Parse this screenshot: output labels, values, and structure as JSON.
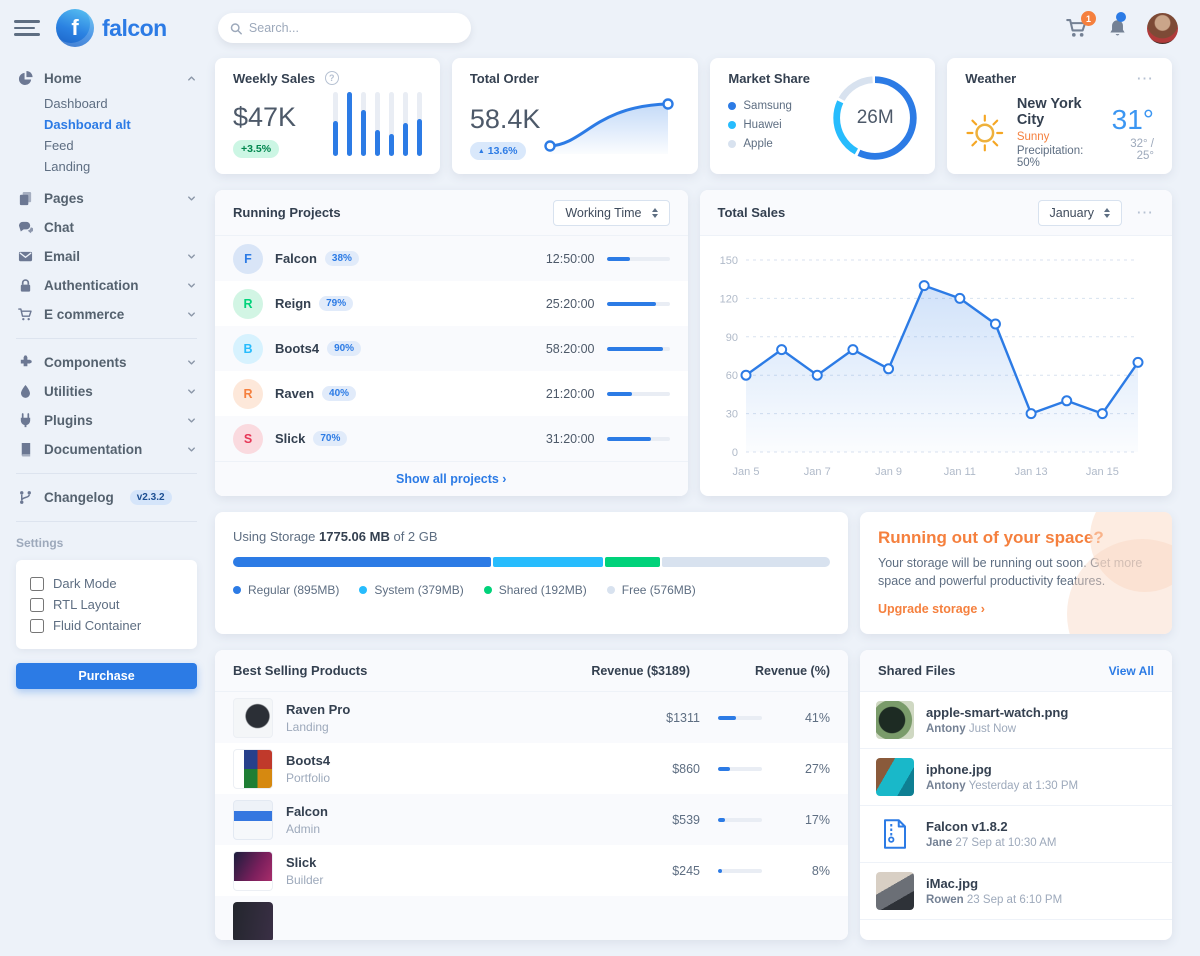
{
  "icons": {
    "ellipsis": "⋯",
    "caret_up": "▲",
    "question": "?"
  },
  "header": {
    "logo": "falcon",
    "logo_letter": "f",
    "search_placeholder": "Search...",
    "cart_badge": "1"
  },
  "sidebar": {
    "home": {
      "label": "Home",
      "children": [
        {
          "label": "Dashboard"
        },
        {
          "label": "Dashboard alt"
        },
        {
          "label": "Feed"
        },
        {
          "label": "Landing"
        }
      ]
    },
    "items_a": [
      {
        "label": "Pages"
      },
      {
        "label": "Chat"
      },
      {
        "label": "Email"
      },
      {
        "label": "Authentication"
      },
      {
        "label": "E commerce"
      }
    ],
    "items_b": [
      {
        "label": "Components"
      },
      {
        "label": "Utilities"
      },
      {
        "label": "Plugins"
      },
      {
        "label": "Documentation"
      }
    ],
    "changelog": {
      "label": "Changelog",
      "version": "v2.3.2"
    },
    "settings_title": "Settings",
    "toggles": [
      {
        "label": "Dark Mode"
      },
      {
        "label": "RTL Layout"
      },
      {
        "label": "Fluid Container"
      }
    ],
    "purchase_label": "Purchase"
  },
  "cards": {
    "weekly_sales": {
      "title": "Weekly Sales",
      "value": "$47K",
      "badge": "+3.5%",
      "chart": {
        "type": "bar",
        "values": [
          55,
          100,
          72,
          40,
          35,
          52,
          58
        ]
      }
    },
    "total_order": {
      "title": "Total Order",
      "value": "58.4K",
      "badge": "13.6%"
    },
    "market_share": {
      "title": "Market Share",
      "center": "26M",
      "segments": [
        {
          "name": "Samsung",
          "value": 58,
          "color": "#2c7be5"
        },
        {
          "name": "Huawei",
          "value": 25,
          "color": "#27bcfd"
        },
        {
          "name": "Apple",
          "value": 17,
          "color": "#d8e2ef"
        }
      ]
    },
    "weather": {
      "title": "Weather",
      "city": "New York City",
      "condition": "Sunny",
      "precipitation": "Precipitation: 50%",
      "temp": "31°",
      "range": "32° / 25°"
    }
  },
  "running_projects": {
    "title": "Running Projects",
    "select_value": "Working Time",
    "rows": [
      {
        "letter": "F",
        "name": "Falcon",
        "percent": "38%",
        "time": "12:50:00",
        "progress": 38,
        "fg": "#2c7be5",
        "bg": "#d9e5f7"
      },
      {
        "letter": "R",
        "name": "Reign",
        "percent": "79%",
        "time": "25:20:00",
        "progress": 79,
        "fg": "#00d27a",
        "bg": "#d2f5e4"
      },
      {
        "letter": "B",
        "name": "Boots4",
        "percent": "90%",
        "time": "58:20:00",
        "progress": 90,
        "fg": "#27bcfd",
        "bg": "#d7f2fe"
      },
      {
        "letter": "R",
        "name": "Raven",
        "percent": "40%",
        "time": "21:20:00",
        "progress": 40,
        "fg": "#f5803e",
        "bg": "#fde8da"
      },
      {
        "letter": "S",
        "name": "Slick",
        "percent": "70%",
        "time": "31:20:00",
        "progress": 70,
        "fg": "#e63757",
        "bg": "#fadadf"
      }
    ],
    "footer": "Show all projects ›"
  },
  "total_sales": {
    "title": "Total Sales",
    "select_value": "January",
    "chart_data": {
      "type": "line",
      "x": [
        "Jan 5",
        "Jan 6",
        "Jan 7",
        "Jan 8",
        "Jan 9",
        "Jan 10",
        "Jan 11",
        "Jan 12",
        "Jan 13",
        "Jan 14",
        "Jan 15",
        "Jan 16"
      ],
      "values": [
        60,
        80,
        60,
        80,
        65,
        130,
        120,
        100,
        30,
        40,
        30,
        70
      ],
      "ylim": [
        0,
        150
      ],
      "yticks": [
        0,
        30,
        60,
        90,
        120,
        150
      ],
      "xticks": [
        "Jan 5",
        "Jan 7",
        "Jan 9",
        "Jan 11",
        "Jan 13",
        "Jan 15"
      ],
      "line_color": "#2c7be5",
      "grid": "dashed",
      "legend": "none"
    }
  },
  "storage": {
    "prefix": "Using Storage",
    "used": "1775.06 MB",
    "suffix": "of 2 GB",
    "segments": [
      {
        "label": "Regular (895MB)",
        "pct": 43.7,
        "color": "#2c7be5"
      },
      {
        "label": "System (379MB)",
        "pct": 18.5,
        "color": "#27bcfd"
      },
      {
        "label": "Shared (192MB)",
        "pct": 9.4,
        "color": "#00d27a"
      },
      {
        "label": "Free (576MB)",
        "pct": 28.4,
        "color": "#d8e2ef"
      }
    ]
  },
  "space": {
    "title": "Running out of your space?",
    "body": "Your storage will be running out soon. Get more space and powerful productivity features.",
    "link": "Upgrade storage ›"
  },
  "best_selling": {
    "title": "Best Selling Products",
    "col_revenue": "Revenue ($3189)",
    "col_percent": "Revenue (%)",
    "rows": [
      {
        "name": "Raven Pro",
        "category": "Landing",
        "revenue": "$1311",
        "percent": "41%",
        "progress": 41
      },
      {
        "name": "Boots4",
        "category": "Portfolio",
        "revenue": "$860",
        "percent": "27%",
        "progress": 27
      },
      {
        "name": "Falcon",
        "category": "Admin",
        "revenue": "$539",
        "percent": "17%",
        "progress": 17
      },
      {
        "name": "Slick",
        "category": "Builder",
        "revenue": "$245",
        "percent": "8%",
        "progress": 8
      }
    ]
  },
  "shared_files": {
    "title": "Shared Files",
    "view_all": "View All",
    "items": [
      {
        "name": "apple-smart-watch.png",
        "user": "Antony",
        "time": "Just Now"
      },
      {
        "name": "iphone.jpg",
        "user": "Antony",
        "time": "Yesterday at 1:30 PM"
      },
      {
        "name": "Falcon v1.8.2",
        "user": "Jane",
        "time": "27 Sep at 10:30 AM"
      },
      {
        "name": "iMac.jpg",
        "user": "Rowen",
        "time": "23 Sep at 6:10 PM"
      }
    ]
  }
}
